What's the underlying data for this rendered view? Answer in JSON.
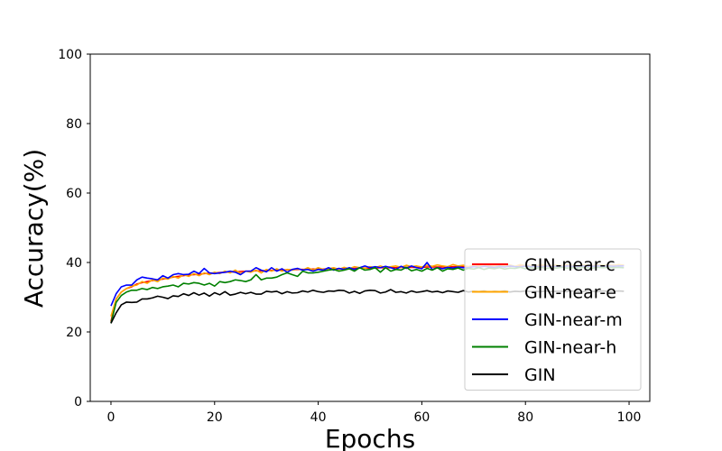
{
  "chart_data": {
    "type": "line",
    "title": "",
    "xlabel": "Epochs",
    "ylabel": "Accuracy(%)",
    "xlim": [
      -4,
      104
    ],
    "ylim": [
      0,
      100
    ],
    "xticks": [
      0,
      20,
      40,
      60,
      80,
      100
    ],
    "yticks": [
      0,
      20,
      40,
      60,
      80,
      100
    ],
    "grid": false,
    "legend_position": "lower-right",
    "x": [
      0,
      1,
      2,
      3,
      4,
      5,
      6,
      7,
      8,
      9,
      10,
      11,
      12,
      13,
      14,
      15,
      16,
      17,
      18,
      19,
      20,
      21,
      22,
      23,
      24,
      25,
      26,
      27,
      28,
      29,
      30,
      31,
      32,
      33,
      34,
      35,
      36,
      37,
      38,
      39,
      40,
      41,
      42,
      43,
      44,
      45,
      46,
      47,
      48,
      49,
      50,
      51,
      52,
      53,
      54,
      55,
      56,
      57,
      58,
      59,
      60,
      61,
      62,
      63,
      64,
      65,
      66,
      67,
      68,
      69,
      70,
      71,
      72,
      73,
      74,
      75,
      76,
      77,
      78,
      79,
      80,
      81,
      82,
      83,
      84,
      85,
      86,
      87,
      88,
      89,
      90,
      91,
      92,
      93,
      94,
      95,
      96,
      97,
      98,
      99
    ],
    "series": [
      {
        "name": "GIN-near-c",
        "color": "#ff0000",
        "values": [
          23.0,
          29.5,
          31.5,
          32.5,
          33.0,
          33.8,
          34.2,
          34.5,
          34.8,
          35.0,
          35.2,
          35.5,
          35.8,
          36.0,
          36.2,
          36.4,
          36.5,
          36.6,
          36.8,
          36.9,
          37.0,
          37.1,
          37.2,
          37.3,
          37.3,
          37.4,
          37.5,
          37.5,
          37.6,
          37.6,
          37.7,
          37.7,
          37.8,
          37.8,
          37.9,
          37.9,
          38.0,
          38.0,
          38.0,
          38.1,
          38.1,
          38.1,
          38.2,
          38.2,
          38.2,
          38.3,
          38.3,
          38.3,
          38.4,
          38.4,
          38.4,
          38.4,
          38.5,
          38.5,
          38.5,
          38.5,
          38.6,
          38.6,
          38.6,
          38.6,
          38.6,
          38.7,
          38.7,
          38.7,
          38.7,
          38.7,
          38.8,
          38.8,
          38.8,
          38.8,
          38.8,
          38.8,
          38.9,
          38.9,
          38.9,
          38.9,
          38.9,
          38.9,
          38.9,
          39.0,
          39.0,
          39.0,
          39.0,
          39.0,
          39.0,
          39.0,
          39.0,
          39.1,
          39.1,
          39.1,
          39.1,
          39.1,
          39.1,
          39.1,
          39.1,
          39.1,
          39.1,
          39.2,
          39.2,
          39.2
        ]
      },
      {
        "name": "GIN-near-e",
        "color": "#ffa500",
        "values": [
          24.5,
          29.5,
          31.5,
          32.5,
          33.2,
          33.5,
          34.5,
          34.0,
          35.0,
          34.5,
          35.5,
          35.2,
          36.0,
          35.5,
          36.5,
          36.0,
          36.8,
          36.2,
          37.0,
          36.5,
          37.2,
          36.8,
          37.5,
          37.0,
          37.8,
          36.8,
          37.5,
          37.2,
          37.8,
          37.0,
          38.0,
          37.5,
          38.2,
          37.5,
          38.0,
          37.8,
          38.2,
          37.8,
          38.5,
          37.8,
          38.5,
          38.0,
          38.2,
          38.5,
          38.0,
          38.6,
          38.2,
          38.8,
          38.5,
          38.3,
          38.8,
          38.5,
          39.0,
          38.5,
          38.8,
          39.0,
          38.6,
          39.2,
          38.8,
          39.0,
          38.7,
          39.2,
          38.9,
          39.3,
          39.0,
          38.8,
          39.4,
          39.0,
          39.2,
          38.8,
          39.3,
          39.1,
          38.9,
          39.4,
          39.0,
          39.2,
          39.1,
          39.3,
          38.9,
          39.4,
          39.1,
          39.2,
          39.0,
          39.4,
          39.2,
          39.1,
          39.3,
          39.0,
          39.4,
          39.2,
          39.1,
          39.3,
          39.2,
          39.0,
          39.4,
          39.2,
          39.3,
          39.1,
          39.4,
          39.2
        ]
      },
      {
        "name": "GIN-near-m",
        "color": "#0000ff",
        "values": [
          27.5,
          31.0,
          33.0,
          33.5,
          33.5,
          35.0,
          35.8,
          35.5,
          35.3,
          35.0,
          36.2,
          35.5,
          36.5,
          36.8,
          36.5,
          36.6,
          37.5,
          36.8,
          38.3,
          37.0,
          36.8,
          37.0,
          37.2,
          37.5,
          37.2,
          36.5,
          37.5,
          37.5,
          38.5,
          37.8,
          37.3,
          38.5,
          37.5,
          38.2,
          37.2,
          38.0,
          38.3,
          37.8,
          38.0,
          37.5,
          38.0,
          37.8,
          38.5,
          37.8,
          38.3,
          38.0,
          38.5,
          38.0,
          38.5,
          39.0,
          38.5,
          38.8,
          38.5,
          38.9,
          38.5,
          38.0,
          38.9,
          38.3,
          39.0,
          38.5,
          38.2,
          40.0,
          38.0,
          38.5,
          38.2,
          38.6,
          38.4,
          38.7,
          38.5,
          38.5,
          38.8,
          38.6,
          38.9,
          38.7,
          38.6,
          38.9,
          38.7,
          39.0,
          38.8,
          38.7,
          39.0,
          38.8,
          38.9,
          38.7,
          39.0,
          38.8,
          38.9,
          38.8,
          39.0,
          38.9,
          38.8,
          39.0,
          38.9,
          38.9,
          39.0,
          38.9,
          39.0,
          38.9,
          39.0,
          39.0
        ]
      },
      {
        "name": "GIN-near-h",
        "color": "#008000",
        "values": [
          22.5,
          28.5,
          30.5,
          31.5,
          32.0,
          32.0,
          32.5,
          32.2,
          32.8,
          32.5,
          33.0,
          33.2,
          33.5,
          33.0,
          34.0,
          33.8,
          34.2,
          34.0,
          33.5,
          34.0,
          33.2,
          34.5,
          34.2,
          34.5,
          35.0,
          34.8,
          34.5,
          35.0,
          36.5,
          35.0,
          35.5,
          35.5,
          35.8,
          36.5,
          37.0,
          36.5,
          36.0,
          37.5,
          37.0,
          37.0,
          37.2,
          37.5,
          37.8,
          38.0,
          37.5,
          37.8,
          38.2,
          37.5,
          38.5,
          37.8,
          38.0,
          38.5,
          37.2,
          38.5,
          37.5,
          38.0,
          37.8,
          38.6,
          37.6,
          38.0,
          37.5,
          38.3,
          37.8,
          38.5,
          37.5,
          38.2,
          38.0,
          38.4,
          37.8,
          38.3,
          38.1,
          38.5,
          38.0,
          38.4,
          38.2,
          38.5,
          38.1,
          38.4,
          38.3,
          38.6,
          38.2,
          38.5,
          38.3,
          38.6,
          38.3,
          38.5,
          38.4,
          38.6,
          38.4,
          38.5,
          38.4,
          38.6,
          38.5,
          38.4,
          38.6,
          38.5,
          38.6,
          38.5,
          38.6,
          38.5
        ]
      },
      {
        "name": "GIN",
        "color": "#000000",
        "values": [
          22.5,
          25.5,
          27.8,
          28.6,
          28.5,
          28.6,
          29.5,
          29.5,
          29.8,
          30.3,
          30.0,
          29.6,
          30.4,
          30.2,
          31.0,
          30.5,
          31.3,
          30.6,
          31.2,
          30.3,
          31.3,
          30.7,
          31.6,
          30.6,
          30.9,
          31.4,
          31.0,
          31.4,
          30.9,
          30.9,
          31.7,
          31.5,
          31.7,
          31.0,
          31.6,
          31.2,
          31.3,
          31.8,
          31.5,
          32.0,
          31.6,
          31.4,
          31.8,
          31.7,
          32.0,
          31.9,
          31.2,
          31.7,
          31.1,
          31.8,
          32.0,
          31.9,
          31.2,
          31.5,
          32.2,
          31.4,
          31.6,
          31.2,
          31.8,
          31.4,
          31.6,
          31.9,
          31.5,
          31.7,
          31.3,
          31.8,
          31.6,
          31.4,
          31.9,
          31.5,
          31.7,
          31.6,
          31.8,
          31.5,
          31.7,
          31.6,
          31.8,
          31.5,
          31.7,
          31.6,
          31.8,
          31.6,
          31.7,
          31.6,
          31.8,
          31.6,
          31.7,
          31.7,
          31.6,
          31.8,
          31.7,
          31.6,
          31.8,
          31.7,
          31.6,
          31.8,
          31.7,
          31.7,
          31.8,
          31.7
        ]
      }
    ]
  }
}
